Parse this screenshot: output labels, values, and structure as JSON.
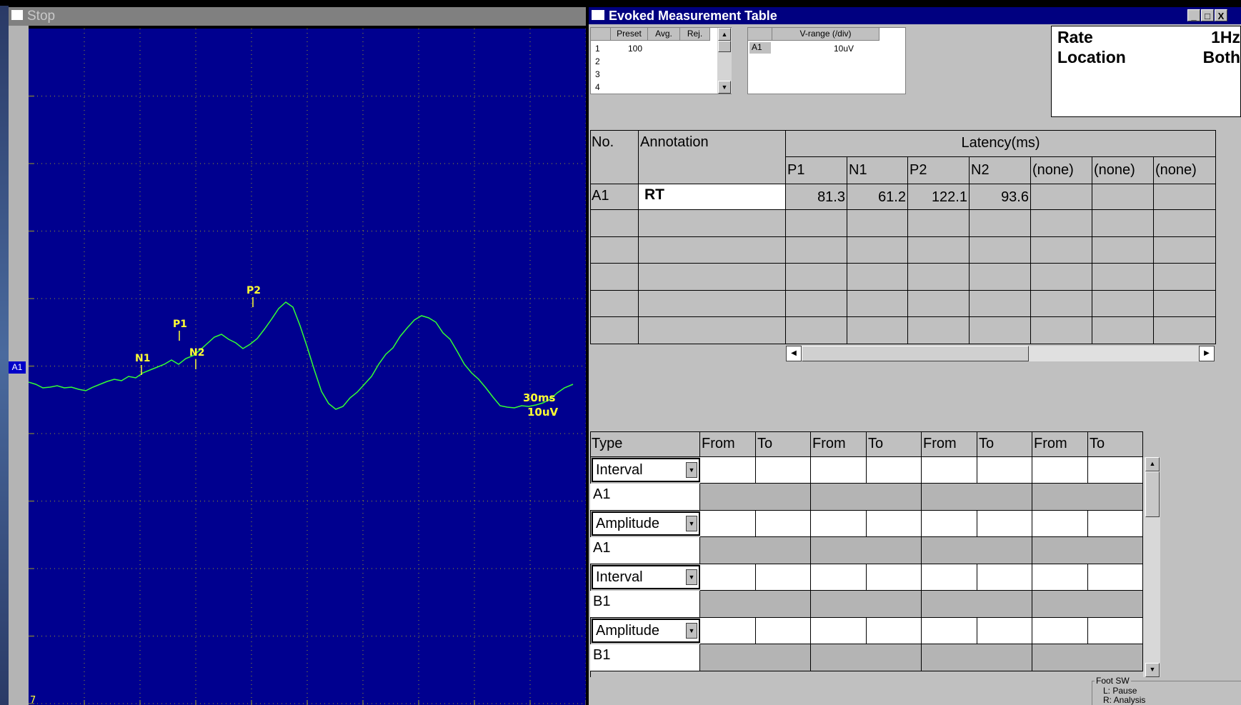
{
  "waveform": {
    "title": "Stop",
    "channel": "A1",
    "scale_time": "30ms",
    "scale_amp": "10uV",
    "corner": "7",
    "peaks": [
      "N1",
      "P1",
      "N2",
      "P2"
    ],
    "trace_color": "#33ff33",
    "grid_color": "#a0a020",
    "bg_color": "#00008f"
  },
  "table_window": {
    "title": "Evoked Measurement Table",
    "buttons": [
      "_",
      "□",
      "X"
    ]
  },
  "preset_table": {
    "headers": [
      "Preset",
      "Avg.",
      "Rej."
    ],
    "rows": [
      {
        "no": "1",
        "preset": "100"
      },
      {
        "no": "2",
        "preset": ""
      },
      {
        "no": "3",
        "preset": ""
      },
      {
        "no": "4",
        "preset": ""
      }
    ]
  },
  "vrange_table": {
    "header": "V-range (/div)",
    "row_label": "A1",
    "row_value": "10uV"
  },
  "info": {
    "rate_label": "Rate",
    "rate_value": "1Hz",
    "location_label": "Location",
    "location_value": "Both"
  },
  "latency_table": {
    "col_no": "No.",
    "col_annotation": "Annotation",
    "col_latency": "Latency(ms)",
    "subheaders": [
      "P1",
      "N1",
      "P2",
      "N2",
      "(none)",
      "(none)",
      "(none)"
    ],
    "row": {
      "no": "A1",
      "annotation": "RT",
      "values": [
        "81.3",
        "61.2",
        "122.1",
        "93.6",
        "",
        "",
        ""
      ]
    }
  },
  "measure_table": {
    "headers": [
      "Type",
      "From",
      "To",
      "From",
      "To",
      "From",
      "To",
      "From",
      "To"
    ],
    "rows": [
      {
        "type": "Interval",
        "channel": "A1"
      },
      {
        "type": "Amplitude",
        "channel": "A1"
      },
      {
        "type": "Interval",
        "channel": "B1"
      },
      {
        "type": "Amplitude",
        "channel": "B1"
      }
    ]
  },
  "foot_sw": {
    "title": "Foot SW",
    "left": "L: Pause",
    "right": "R: Analysis"
  }
}
